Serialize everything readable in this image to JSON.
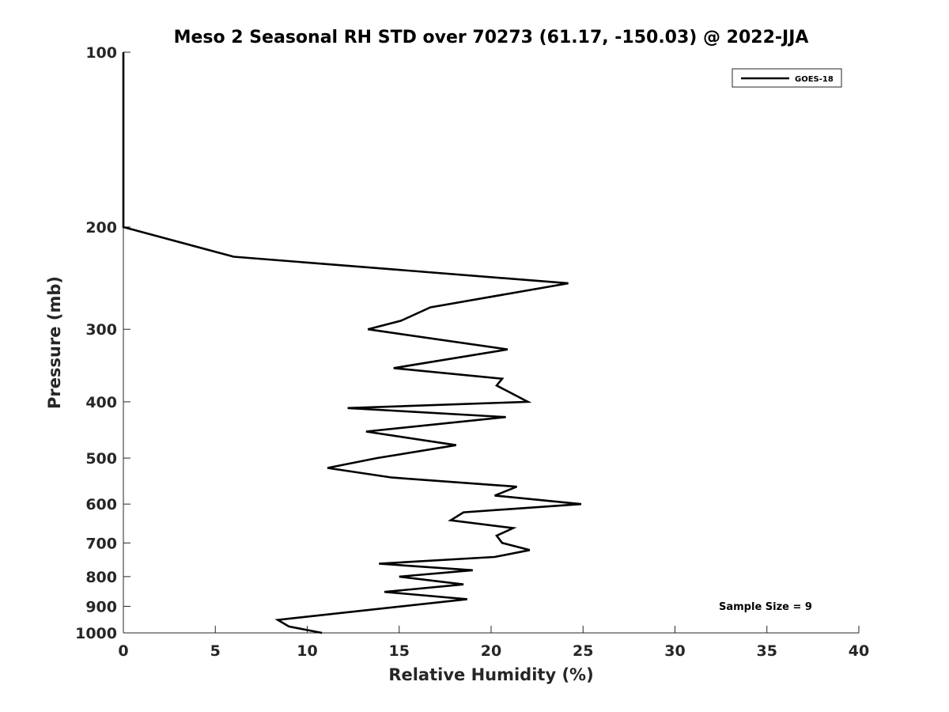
{
  "chart_data": {
    "type": "line",
    "title": "Meso 2 Seasonal RH STD over 70273 (61.17, -150.03) @ 2022-JJA",
    "xlabel": "Relative Humidity (%)",
    "ylabel": "Pressure (mb)",
    "xlim": [
      0,
      40
    ],
    "ylim": [
      100,
      1000
    ],
    "y_scale": "log",
    "y_reversed": true,
    "grid": false,
    "legend_position": "top-right",
    "x_ticks": [
      "0",
      "5",
      "10",
      "15",
      "20",
      "25",
      "30",
      "35",
      "40"
    ],
    "y_ticks": [
      "100",
      "200",
      "300",
      "400",
      "500",
      "600",
      "700",
      "800",
      "900",
      "1000"
    ],
    "annotation": "Sample Size = 9",
    "series": [
      {
        "name": "GOES-18",
        "color": "#000000",
        "points": [
          {
            "x": 10.8,
            "y": 1000
          },
          {
            "x": 9.0,
            "y": 975
          },
          {
            "x": 8.4,
            "y": 950
          },
          {
            "x": 18.7,
            "y": 875
          },
          {
            "x": 14.2,
            "y": 850
          },
          {
            "x": 18.5,
            "y": 825
          },
          {
            "x": 15.0,
            "y": 800
          },
          {
            "x": 19.0,
            "y": 780
          },
          {
            "x": 13.9,
            "y": 760
          },
          {
            "x": 20.2,
            "y": 740
          },
          {
            "x": 22.1,
            "y": 720
          },
          {
            "x": 20.6,
            "y": 700
          },
          {
            "x": 20.3,
            "y": 680
          },
          {
            "x": 21.2,
            "y": 660
          },
          {
            "x": 17.8,
            "y": 640
          },
          {
            "x": 18.5,
            "y": 620
          },
          {
            "x": 24.9,
            "y": 600
          },
          {
            "x": 20.2,
            "y": 580
          },
          {
            "x": 21.4,
            "y": 560
          },
          {
            "x": 14.6,
            "y": 540
          },
          {
            "x": 11.1,
            "y": 520
          },
          {
            "x": 13.8,
            "y": 500
          },
          {
            "x": 18.1,
            "y": 475
          },
          {
            "x": 13.2,
            "y": 450
          },
          {
            "x": 20.8,
            "y": 425
          },
          {
            "x": 12.2,
            "y": 410
          },
          {
            "x": 22.0,
            "y": 400
          },
          {
            "x": 20.3,
            "y": 375
          },
          {
            "x": 20.6,
            "y": 365
          },
          {
            "x": 14.7,
            "y": 350
          },
          {
            "x": 20.9,
            "y": 325
          },
          {
            "x": 13.3,
            "y": 300
          },
          {
            "x": 15.1,
            "y": 290
          },
          {
            "x": 16.7,
            "y": 275
          },
          {
            "x": 24.2,
            "y": 250
          },
          {
            "x": 6.0,
            "y": 225
          },
          {
            "x": 0.0,
            "y": 200
          },
          {
            "x": 0.0,
            "y": 150
          },
          {
            "x": 0.0,
            "y": 100
          }
        ]
      }
    ]
  }
}
